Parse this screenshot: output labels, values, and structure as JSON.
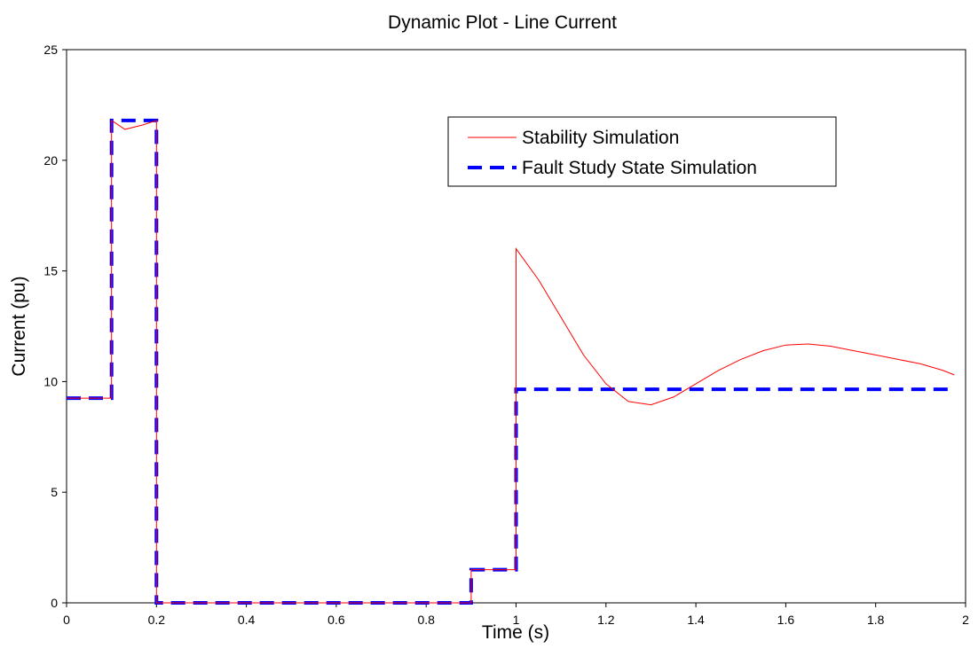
{
  "chart_data": {
    "type": "line",
    "title": "Dynamic Plot - Line Current",
    "xlabel": "Time (s)",
    "ylabel": "Current (pu)",
    "xlim": [
      0,
      2
    ],
    "ylim": [
      0,
      25
    ],
    "x_ticks": [
      "0",
      "0.2",
      "0.4",
      "0.6",
      "0.8",
      "1",
      "1.2",
      "1.4",
      "1.6",
      "1.8",
      "2"
    ],
    "y_ticks": [
      "0",
      "5",
      "10",
      "15",
      "20",
      "25"
    ],
    "grid": false,
    "legend_position": "top-right",
    "series": [
      {
        "name": "Stability Simulation",
        "color": "#ff0000",
        "style": "solid",
        "x": [
          0,
          0.1,
          0.1,
          0.13,
          0.17,
          0.2,
          0.2,
          0.9,
          0.9,
          1.0,
          1.0,
          1.05,
          1.1,
          1.15,
          1.2,
          1.25,
          1.3,
          1.35,
          1.4,
          1.45,
          1.5,
          1.55,
          1.6,
          1.65,
          1.7,
          1.75,
          1.8,
          1.85,
          1.9,
          1.95,
          1.975
        ],
        "y": [
          9.25,
          9.25,
          21.8,
          21.4,
          21.6,
          21.8,
          0,
          0,
          1.5,
          1.5,
          16.0,
          14.6,
          12.9,
          11.2,
          9.9,
          9.1,
          8.95,
          9.3,
          9.9,
          10.5,
          11.0,
          11.4,
          11.65,
          11.7,
          11.6,
          11.4,
          11.2,
          11.0,
          10.8,
          10.5,
          10.3
        ]
      },
      {
        "name": "Fault Study State Simulation",
        "color": "#0000ff",
        "style": "dashed",
        "x": [
          0,
          0.1,
          0.1,
          0.2,
          0.2,
          0.9,
          0.9,
          1.0,
          1.0,
          1.975
        ],
        "y": [
          9.25,
          9.25,
          21.8,
          21.8,
          0,
          0,
          1.5,
          1.5,
          9.65,
          9.65
        ]
      }
    ]
  }
}
